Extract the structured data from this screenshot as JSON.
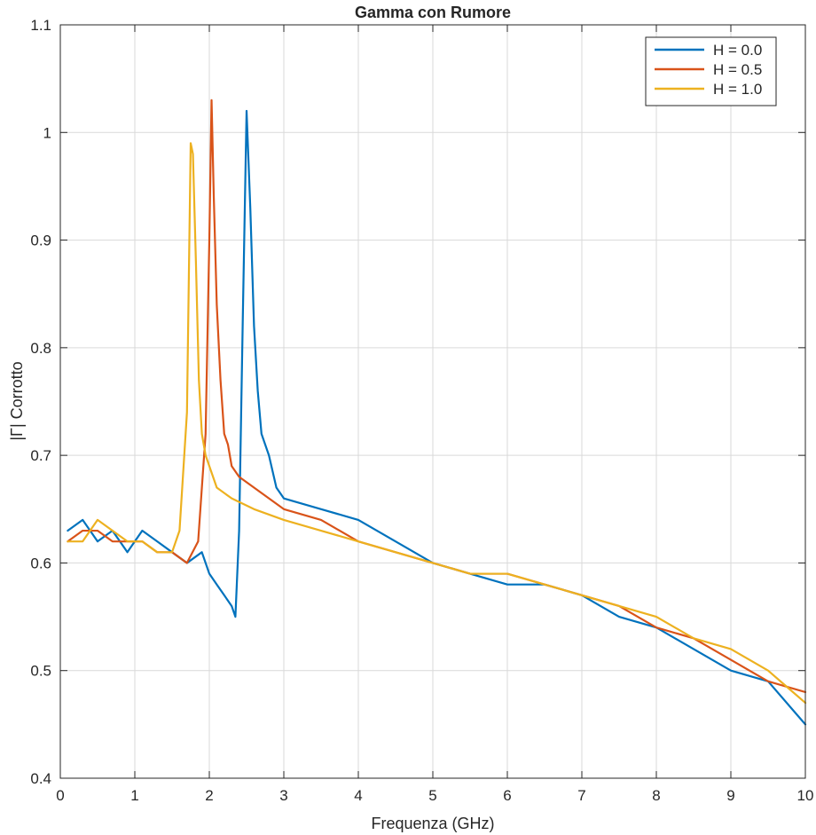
{
  "chart_data": {
    "type": "line",
    "title": "Gamma con Rumore",
    "xlabel": "Frequenza (GHz)",
    "ylabel": "|Γ| Corrotto",
    "xlim": [
      0,
      10
    ],
    "ylim": [
      0.4,
      1.1
    ],
    "x_ticks": [
      0,
      1,
      2,
      3,
      4,
      5,
      6,
      7,
      8,
      9,
      10
    ],
    "x_tick_labels": [
      "0",
      "1",
      "2",
      "3",
      "4",
      "5",
      "6",
      "7",
      "8",
      "9",
      "10"
    ],
    "y_ticks": [
      0.4,
      0.5,
      0.6,
      0.7,
      0.8,
      0.9,
      1.0,
      1.1
    ],
    "y_tick_labels": [
      "0.4",
      "0.5",
      "0.6",
      "0.7",
      "0.8",
      "0.9",
      "1",
      "1.1"
    ],
    "grid": true,
    "legend_position": "top-right",
    "series": [
      {
        "name": "H = 0.0",
        "color": "#0072BD",
        "x": [
          0.1,
          0.3,
          0.5,
          0.7,
          0.9,
          1.1,
          1.3,
          1.5,
          1.7,
          1.9,
          2.0,
          2.1,
          2.2,
          2.3,
          2.35,
          2.4,
          2.45,
          2.5,
          2.55,
          2.6,
          2.65,
          2.7,
          2.8,
          2.9,
          3.0,
          3.5,
          4.0,
          4.5,
          5.0,
          5.5,
          6.0,
          6.5,
          7.0,
          7.5,
          8.0,
          8.5,
          9.0,
          9.5,
          10.0
        ],
        "y": [
          0.63,
          0.64,
          0.62,
          0.63,
          0.61,
          0.63,
          0.62,
          0.61,
          0.6,
          0.61,
          0.59,
          0.58,
          0.57,
          0.56,
          0.55,
          0.63,
          0.83,
          1.02,
          0.93,
          0.82,
          0.76,
          0.72,
          0.7,
          0.67,
          0.66,
          0.65,
          0.64,
          0.62,
          0.6,
          0.59,
          0.58,
          0.58,
          0.57,
          0.55,
          0.54,
          0.52,
          0.5,
          0.49,
          0.45
        ]
      },
      {
        "name": "H = 0.5",
        "color": "#D95319",
        "x": [
          0.1,
          0.3,
          0.5,
          0.7,
          0.9,
          1.1,
          1.3,
          1.5,
          1.7,
          1.85,
          1.95,
          2.0,
          2.03,
          2.06,
          2.1,
          2.15,
          2.2,
          2.25,
          2.3,
          2.4,
          2.6,
          3.0,
          3.5,
          4.0,
          4.5,
          5.0,
          5.5,
          6.0,
          6.5,
          7.0,
          7.5,
          8.0,
          8.5,
          9.0,
          9.5,
          10.0
        ],
        "y": [
          0.62,
          0.63,
          0.63,
          0.62,
          0.62,
          0.62,
          0.61,
          0.61,
          0.6,
          0.62,
          0.72,
          0.9,
          1.03,
          0.94,
          0.84,
          0.77,
          0.72,
          0.71,
          0.69,
          0.68,
          0.67,
          0.65,
          0.64,
          0.62,
          0.61,
          0.6,
          0.59,
          0.59,
          0.58,
          0.57,
          0.56,
          0.54,
          0.53,
          0.51,
          0.49,
          0.48
        ]
      },
      {
        "name": "H = 1.0",
        "color": "#EDB120",
        "x": [
          0.1,
          0.3,
          0.5,
          0.7,
          0.9,
          1.1,
          1.3,
          1.5,
          1.6,
          1.7,
          1.75,
          1.78,
          1.82,
          1.86,
          1.9,
          1.95,
          2.0,
          2.1,
          2.3,
          2.6,
          3.0,
          3.5,
          4.0,
          4.5,
          5.0,
          5.5,
          6.0,
          6.5,
          7.0,
          7.5,
          8.0,
          8.5,
          9.0,
          9.5,
          10.0
        ],
        "y": [
          0.62,
          0.62,
          0.64,
          0.63,
          0.62,
          0.62,
          0.61,
          0.61,
          0.63,
          0.74,
          0.99,
          0.98,
          0.88,
          0.77,
          0.72,
          0.7,
          0.69,
          0.67,
          0.66,
          0.65,
          0.64,
          0.63,
          0.62,
          0.61,
          0.6,
          0.59,
          0.59,
          0.58,
          0.57,
          0.56,
          0.55,
          0.53,
          0.52,
          0.5,
          0.47
        ]
      }
    ]
  }
}
